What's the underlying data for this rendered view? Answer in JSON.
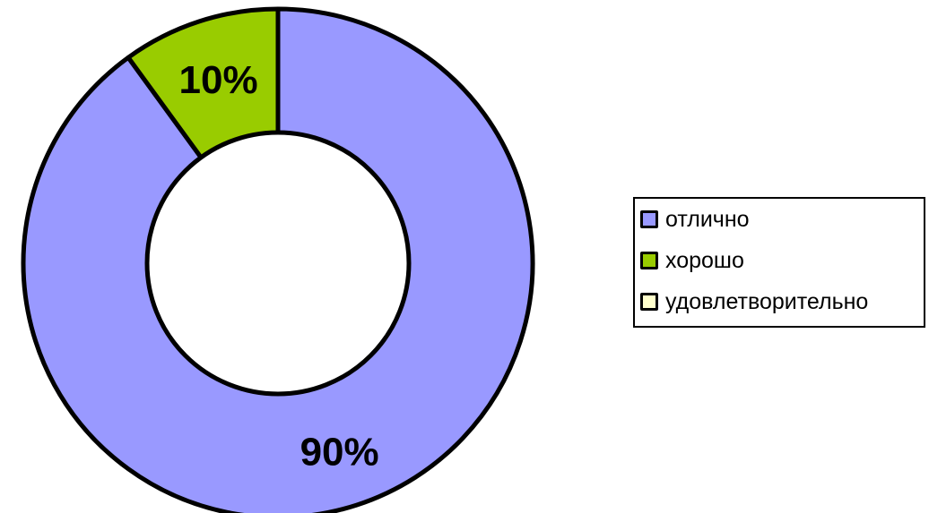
{
  "chart_data": {
    "type": "pie",
    "variant": "donut",
    "categories": [
      "отлично",
      "хорошо",
      "удовлетворительно"
    ],
    "values": [
      90,
      10,
      0
    ],
    "data_labels": [
      "90%",
      "10%",
      ""
    ],
    "colors": [
      "#9999ff",
      "#99cc00",
      "#ffffcc"
    ],
    "legend_position": "right",
    "title": ""
  }
}
